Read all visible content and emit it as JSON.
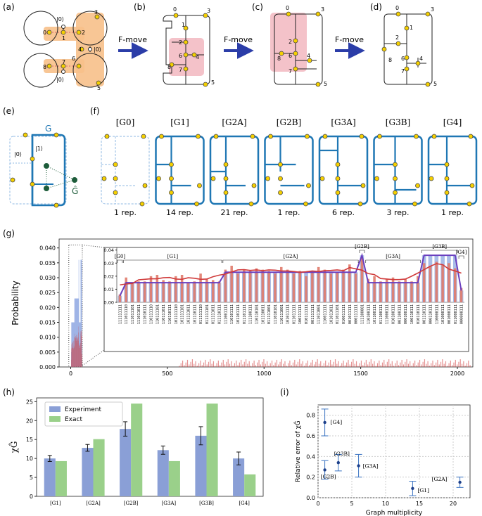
{
  "panels": {
    "a": "(a)",
    "b": "(b)",
    "c": "(c)",
    "d": "(d)",
    "e": "(e)",
    "f": "(f)",
    "g": "(g)",
    "h": "(h)",
    "i": "(i)"
  },
  "fmove": [
    "F-move",
    "F-move",
    "F-move"
  ],
  "panel_a": {
    "ket0_top": "|0⟩",
    "ket0_bottom": "|0⟩",
    "ket0_right": "|0⟩",
    "nodes": [
      "0",
      "1",
      "2",
      "3",
      "4",
      "5",
      "6",
      "7",
      "8"
    ]
  },
  "panel_b": {
    "nodes": [
      "0",
      "1",
      "2",
      "3",
      "4",
      "5",
      "6",
      "7",
      "8"
    ]
  },
  "panel_c": {
    "nodes": [
      "0",
      "2",
      "3",
      "4",
      "5",
      "6",
      "7",
      "8"
    ]
  },
  "panel_d": {
    "nodes": [
      "0",
      "1",
      "2",
      "3",
      "4",
      "5",
      "6",
      "7",
      "8"
    ]
  },
  "panel_e": {
    "G": "G",
    "ket0": "|0⟩",
    "ket1": "|1⟩",
    "Ghat": "Ĝ"
  },
  "panel_f": {
    "graphs": [
      {
        "label": "[G0]",
        "reps": "1 rep."
      },
      {
        "label": "[G1]",
        "reps": "14 rep."
      },
      {
        "label": "[G2A]",
        "reps": "21 rep."
      },
      {
        "label": "[G2B]",
        "reps": "1 rep."
      },
      {
        "label": "[G3A]",
        "reps": "6 rep."
      },
      {
        "label": "[G3B]",
        "reps": "3 rep."
      },
      {
        "label": "[G4]",
        "reps": "1 rep."
      }
    ]
  },
  "chart_data": [
    {
      "type": "bar",
      "id": "g-main",
      "ylabel": "Probability",
      "xlim": [
        -60,
        2080
      ],
      "ylim": [
        0,
        0.043
      ],
      "yticks": [
        "0.000",
        "0.005",
        "0.010",
        "0.015",
        "0.020",
        "0.025",
        "0.030",
        "0.035",
        "0.040"
      ],
      "xticks": [
        "0",
        "500",
        "1000",
        "1500",
        "2000"
      ],
      "inset": {
        "group_labels": [
          "[G0]",
          "[G1]",
          "[G2A]",
          "[G2B]",
          "[G3A]",
          "[G3B]",
          "[G4]"
        ],
        "yticks": [
          "0.00",
          "0.01",
          "0.02",
          "0.03",
          "0.04"
        ],
        "ylim": [
          0,
          0.042
        ],
        "categories": [
          "111111111",
          "111011110",
          "111011101",
          "111011011",
          "111010111",
          "110111110",
          "110111101",
          "110111011",
          "110110111",
          "101111110",
          "101111101",
          "101111011",
          "101110111",
          "011111110",
          "011111101",
          "011111011",
          "011110111",
          "111001111",
          "110101111",
          "101101111",
          "011101111",
          "111100111",
          "110110101",
          "101110011",
          "011111001",
          "111010101",
          "110111001",
          "101011111",
          "011011111",
          "100111111",
          "010111111",
          "001111111",
          "111011001",
          "110011111",
          "101011011",
          "011011101",
          "010011111",
          "001011111",
          "000111111",
          "111100001",
          "110100111",
          "101100111",
          "011100111",
          "111000111",
          "010100111",
          "001100111",
          "000100111",
          "100110111",
          "010110111",
          "001110111",
          "000110111",
          "110000111",
          "101000111",
          "001000111",
          "011000111",
          "000000111"
        ],
        "exact": [
          0.005,
          0.015,
          0.015,
          0.015,
          0.015,
          0.015,
          0.015,
          0.015,
          0.015,
          0.015,
          0.015,
          0.015,
          0.015,
          0.015,
          0.015,
          0.015,
          0.015,
          0.023,
          0.023,
          0.023,
          0.023,
          0.023,
          0.023,
          0.023,
          0.023,
          0.023,
          0.023,
          0.023,
          0.023,
          0.023,
          0.023,
          0.023,
          0.023,
          0.023,
          0.023,
          0.023,
          0.023,
          0.023,
          0.023,
          0.036,
          0.015,
          0.015,
          0.015,
          0.015,
          0.015,
          0.015,
          0.015,
          0.015,
          0.015,
          0.036,
          0.036,
          0.036,
          0.036,
          0.036,
          0.036,
          0.009
        ],
        "experiment": [
          0.006,
          0.019,
          0.015,
          0.016,
          0.016,
          0.02,
          0.021,
          0.017,
          0.016,
          0.02,
          0.021,
          0.015,
          0.016,
          0.022,
          0.018,
          0.017,
          0.016,
          0.025,
          0.028,
          0.022,
          0.025,
          0.024,
          0.026,
          0.025,
          0.024,
          0.022,
          0.027,
          0.025,
          0.022,
          0.024,
          0.02,
          0.024,
          0.027,
          0.025,
          0.022,
          0.023,
          0.025,
          0.029,
          0.022,
          0.034,
          0.018,
          0.02,
          0.016,
          0.018,
          0.019,
          0.016,
          0.018,
          0.016,
          0.02,
          0.03,
          0.028,
          0.031,
          0.029,
          0.03,
          0.026,
          0.011
        ]
      }
    },
    {
      "type": "bar",
      "id": "h",
      "ylabel": "χĜ",
      "categories": [
        "[G1]",
        "[G2A]",
        "[G2B]",
        "[G3A]",
        "[G3B]",
        "[G4]"
      ],
      "ylim": [
        0,
        26
      ],
      "yticks": [
        "0",
        "5",
        "10",
        "15",
        "20",
        "25"
      ],
      "series": [
        {
          "name": "Experiment",
          "values": [
            10.0,
            12.8,
            17.8,
            12.2,
            16.0,
            10.0
          ],
          "errors": [
            0.8,
            0.9,
            1.9,
            1.1,
            2.4,
            1.7
          ]
        },
        {
          "name": "Exact",
          "values": [
            9.3,
            15.1,
            24.5,
            9.3,
            24.5,
            5.8
          ]
        }
      ]
    },
    {
      "type": "scatter",
      "id": "i",
      "xlabel": "Graph multiplicity",
      "ylabel": "Relative error of χĜ",
      "xlim": [
        0,
        22.5
      ],
      "ylim": [
        0,
        0.9
      ],
      "xticks": [
        "0",
        "5",
        "10",
        "15",
        "20"
      ],
      "yticks": [
        "0.0",
        "0.2",
        "0.4",
        "0.6",
        "0.8"
      ],
      "points": [
        {
          "label": "[G4]",
          "x": 1,
          "y": 0.73,
          "err": 0.13
        },
        {
          "label": "[G2B]",
          "x": 1,
          "y": 0.27,
          "err": 0.09
        },
        {
          "label": "[G3B]",
          "x": 3,
          "y": 0.34,
          "err": 0.08
        },
        {
          "label": "[G3A]",
          "x": 6,
          "y": 0.31,
          "err": 0.11
        },
        {
          "label": "[G1]",
          "x": 14,
          "y": 0.09,
          "err": 0.07
        },
        {
          "label": "[G2A]",
          "x": 21,
          "y": 0.15,
          "err": 0.05
        }
      ]
    }
  ],
  "colors": {
    "orange": "#f7c08a",
    "pink": "#f2b7bf",
    "blue": "#1f77b4",
    "lightblue": "#8fb8e3",
    "yellow": "#f5d000",
    "experiment": "#8a9fd6",
    "exact": "#9ad08a",
    "red": "#d03a3a",
    "purple": "#6a3fbf",
    "darkgreen": "#1d5c3a"
  }
}
